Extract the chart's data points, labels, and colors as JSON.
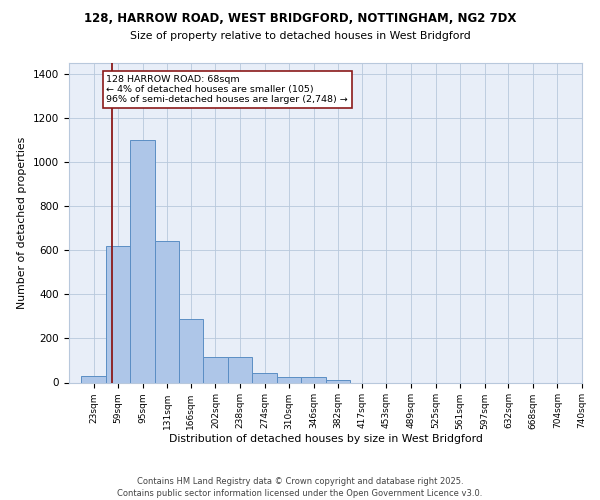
{
  "title_line1": "128, HARROW ROAD, WEST BRIDGFORD, NOTTINGHAM, NG2 7DX",
  "title_line2": "Size of property relative to detached houses in West Bridgford",
  "xlabel": "Distribution of detached houses by size in West Bridgford",
  "ylabel": "Number of detached properties",
  "bin_labels": [
    "23sqm",
    "59sqm",
    "95sqm",
    "131sqm",
    "166sqm",
    "202sqm",
    "238sqm",
    "274sqm",
    "310sqm",
    "346sqm",
    "382sqm",
    "417sqm",
    "453sqm",
    "489sqm",
    "525sqm",
    "561sqm",
    "597sqm",
    "632sqm",
    "668sqm",
    "704sqm",
    "740sqm"
  ],
  "bin_edges": [
    23,
    59,
    95,
    131,
    166,
    202,
    238,
    274,
    310,
    346,
    382,
    417,
    453,
    489,
    525,
    561,
    597,
    632,
    668,
    704,
    740
  ],
  "bar_heights": [
    30,
    620,
    1100,
    640,
    290,
    115,
    115,
    45,
    25,
    25,
    10,
    0,
    0,
    0,
    0,
    0,
    0,
    0,
    0,
    0,
    0
  ],
  "bar_color": "#aec6e8",
  "bar_edge_color": "#5b8ec4",
  "grid_color": "#b8c8dc",
  "background_color": "#e8eef8",
  "vline_x": 68,
  "vline_color": "#8b1a1a",
  "annotation_text": "128 HARROW ROAD: 68sqm\n← 4% of detached houses are smaller (105)\n96% of semi-detached houses are larger (2,748) →",
  "ylim": [
    0,
    1450
  ],
  "yticks": [
    0,
    200,
    400,
    600,
    800,
    1000,
    1200,
    1400
  ],
  "footer_line1": "Contains HM Land Registry data © Crown copyright and database right 2025.",
  "footer_line2": "Contains public sector information licensed under the Open Government Licence v3.0."
}
